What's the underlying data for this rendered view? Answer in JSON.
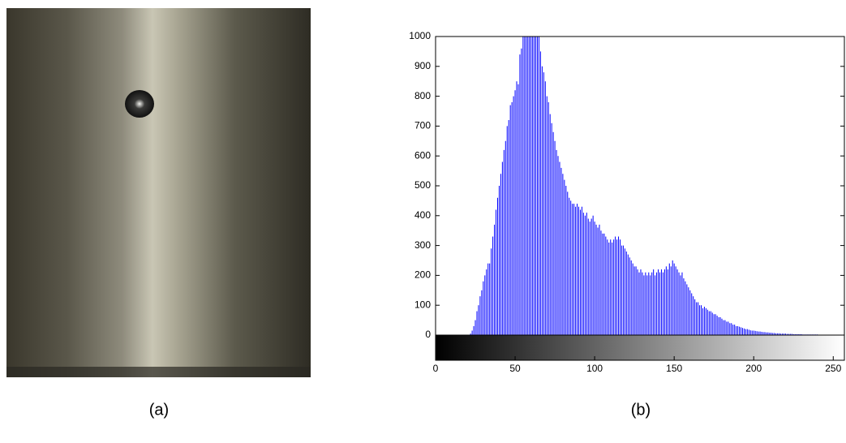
{
  "chart_data": {
    "type": "histogram",
    "color": "#0000ff",
    "x": [
      0,
      1,
      2,
      3,
      4,
      5,
      6,
      7,
      8,
      9,
      10,
      11,
      12,
      13,
      14,
      15,
      16,
      17,
      18,
      19,
      20,
      21,
      22,
      23,
      24,
      25,
      26,
      27,
      28,
      29,
      30,
      31,
      32,
      33,
      34,
      35,
      36,
      37,
      38,
      39,
      40,
      41,
      42,
      43,
      44,
      45,
      46,
      47,
      48,
      49,
      50,
      51,
      52,
      53,
      54,
      55,
      56,
      57,
      58,
      59,
      60,
      61,
      62,
      63,
      64,
      65,
      66,
      67,
      68,
      69,
      70,
      71,
      72,
      73,
      74,
      75,
      76,
      77,
      78,
      79,
      80,
      81,
      82,
      83,
      84,
      85,
      86,
      87,
      88,
      89,
      90,
      91,
      92,
      93,
      94,
      95,
      96,
      97,
      98,
      99,
      100,
      101,
      102,
      103,
      104,
      105,
      106,
      107,
      108,
      109,
      110,
      111,
      112,
      113,
      114,
      115,
      116,
      117,
      118,
      119,
      120,
      121,
      122,
      123,
      124,
      125,
      126,
      127,
      128,
      129,
      130,
      131,
      132,
      133,
      134,
      135,
      136,
      137,
      138,
      139,
      140,
      141,
      142,
      143,
      144,
      145,
      146,
      147,
      148,
      149,
      150,
      151,
      152,
      153,
      154,
      155,
      156,
      157,
      158,
      159,
      160,
      161,
      162,
      163,
      164,
      165,
      166,
      167,
      168,
      169,
      170,
      171,
      172,
      173,
      174,
      175,
      176,
      177,
      178,
      179,
      180,
      181,
      182,
      183,
      184,
      185,
      186,
      187,
      188,
      189,
      190,
      191,
      192,
      193,
      194,
      195,
      196,
      197,
      198,
      199,
      200,
      201,
      202,
      203,
      204,
      205,
      206,
      207,
      208,
      209,
      210,
      211,
      212,
      213,
      214,
      215,
      216,
      217,
      218,
      219,
      220,
      221,
      222,
      223,
      224,
      225,
      226,
      227,
      228,
      229,
      230,
      231,
      232,
      233,
      234,
      235,
      236,
      237,
      238,
      239,
      240,
      241,
      242,
      243,
      244,
      245,
      246,
      247,
      248,
      249,
      250,
      251,
      252,
      253,
      254,
      255
    ],
    "values": [
      0,
      0,
      0,
      0,
      0,
      0,
      0,
      0,
      0,
      0,
      0,
      0,
      0,
      0,
      0,
      0,
      0,
      0,
      0,
      0,
      0,
      0,
      5,
      15,
      30,
      50,
      80,
      100,
      130,
      150,
      180,
      200,
      220,
      240,
      240,
      290,
      330,
      370,
      420,
      460,
      500,
      540,
      580,
      620,
      650,
      700,
      720,
      770,
      780,
      800,
      820,
      850,
      840,
      940,
      960,
      1000,
      1000,
      1000,
      1000,
      1000,
      1000,
      1000,
      1000,
      1000,
      1000,
      1000,
      950,
      900,
      880,
      850,
      800,
      780,
      740,
      710,
      680,
      650,
      620,
      600,
      580,
      560,
      540,
      520,
      500,
      480,
      460,
      450,
      440,
      440,
      430,
      440,
      430,
      420,
      430,
      410,
      400,
      410,
      390,
      380,
      390,
      400,
      380,
      370,
      360,
      370,
      350,
      340,
      340,
      330,
      320,
      310,
      320,
      310,
      320,
      330,
      320,
      330,
      320,
      300,
      300,
      290,
      280,
      270,
      260,
      250,
      240,
      230,
      230,
      220,
      210,
      220,
      210,
      200,
      210,
      200,
      210,
      200,
      210,
      220,
      200,
      210,
      220,
      210,
      220,
      210,
      220,
      230,
      220,
      240,
      230,
      250,
      240,
      230,
      220,
      210,
      200,
      210,
      190,
      180,
      170,
      160,
      150,
      140,
      130,
      120,
      110,
      110,
      100,
      100,
      90,
      95,
      90,
      85,
      80,
      80,
      75,
      70,
      70,
      65,
      60,
      60,
      55,
      50,
      50,
      45,
      45,
      40,
      40,
      35,
      35,
      30,
      30,
      28,
      26,
      24,
      22,
      20,
      20,
      18,
      16,
      15,
      15,
      14,
      13,
      12,
      12,
      11,
      10,
      10,
      9,
      9,
      8,
      8,
      7,
      7,
      6,
      6,
      6,
      5,
      5,
      5,
      5,
      4,
      4,
      4,
      4,
      3,
      3,
      3,
      3,
      3,
      3,
      2,
      2,
      2,
      2,
      2,
      2,
      2,
      2,
      2,
      2,
      1,
      1,
      1,
      1,
      1,
      1,
      1,
      1,
      1,
      1,
      1,
      1,
      1,
      1,
      1
    ],
    "xlim": [
      0,
      257
    ],
    "xticks": [
      0,
      50,
      100,
      150,
      200,
      250
    ],
    "ylim": [
      0,
      1000
    ],
    "yticks": [
      0,
      100,
      200,
      300,
      400,
      500,
      600,
      700,
      800,
      900,
      1000
    ]
  },
  "captions": [
    "(a)",
    "(b)"
  ]
}
